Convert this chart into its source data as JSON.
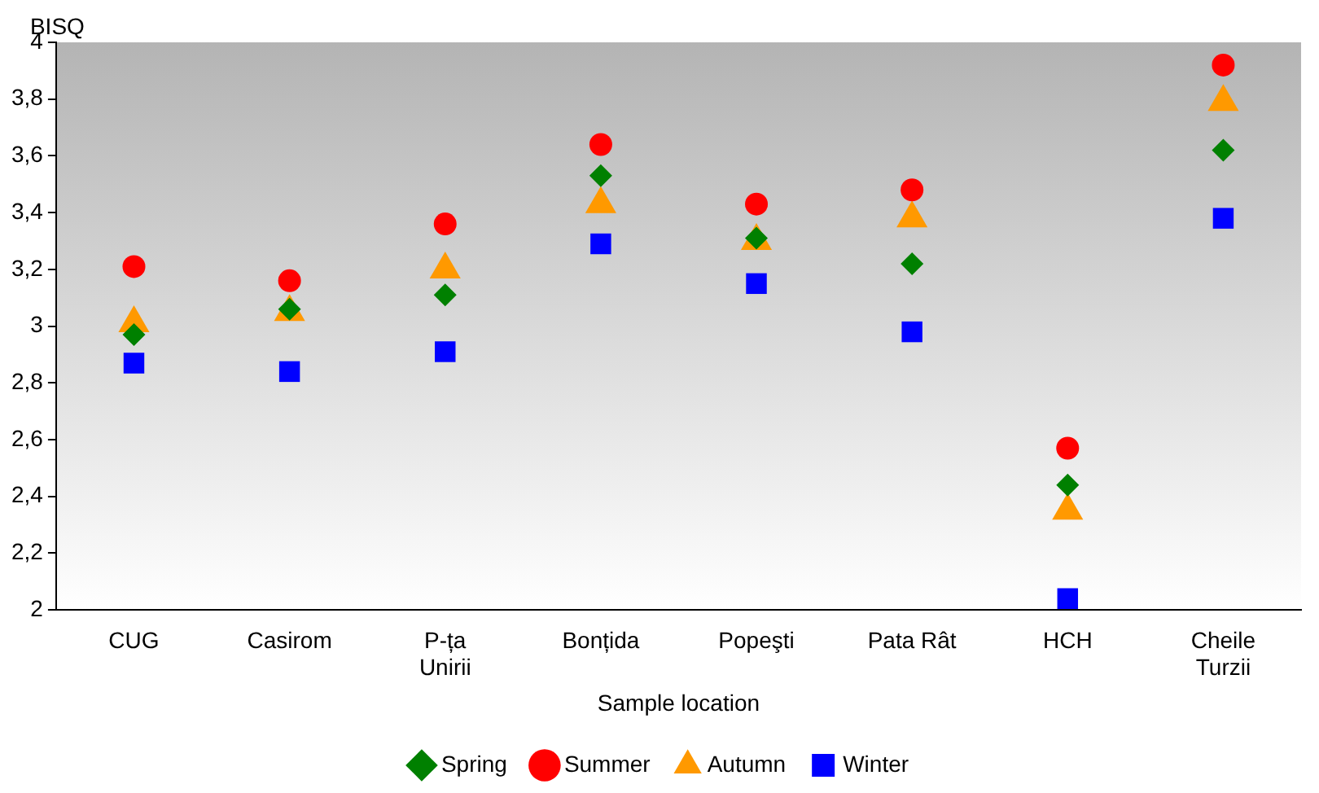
{
  "chart_data": {
    "type": "scatter",
    "ylabel": "BISQ",
    "xlabel": "Sample location",
    "categories": [
      "CUG",
      "Casirom",
      "P-ța Unirii",
      "Bonțida",
      "Popeşti",
      "Pata Rât",
      "HCH",
      "Cheile Turzii"
    ],
    "series": [
      {
        "name": "Spring",
        "color": "#008000",
        "marker": "diamond",
        "values": [
          2.97,
          3.06,
          3.11,
          3.53,
          3.31,
          3.22,
          2.44,
          3.62
        ]
      },
      {
        "name": "Summer",
        "color": "#ff0000",
        "marker": "circle",
        "values": [
          3.21,
          3.16,
          3.36,
          3.64,
          3.43,
          3.48,
          2.57,
          3.92
        ]
      },
      {
        "name": "Autumn",
        "color": "#ff9900",
        "marker": "triangle",
        "values": [
          3.01,
          3.05,
          3.2,
          3.43,
          3.3,
          3.38,
          2.35,
          3.79
        ]
      },
      {
        "name": "Winter",
        "color": "#0000ff",
        "marker": "square",
        "values": [
          2.87,
          2.84,
          2.91,
          3.29,
          3.15,
          2.98,
          2.04,
          3.38
        ]
      }
    ],
    "ylim": [
      2,
      4
    ],
    "yticks": [
      2,
      {
        "value": 2.2,
        "label": "2,2"
      },
      {
        "value": 2.4,
        "label": "2,4"
      },
      {
        "value": 2.6,
        "label": "2,6"
      },
      {
        "value": 2.8,
        "label": "2,8"
      },
      3,
      {
        "value": 3.2,
        "label": "3,2"
      },
      {
        "value": 3.4,
        "label": "3,4"
      },
      {
        "value": 3.6,
        "label": "3,6"
      },
      {
        "value": 3.8,
        "label": "3,8"
      },
      4
    ],
    "grid": false,
    "legend": "bottom"
  }
}
